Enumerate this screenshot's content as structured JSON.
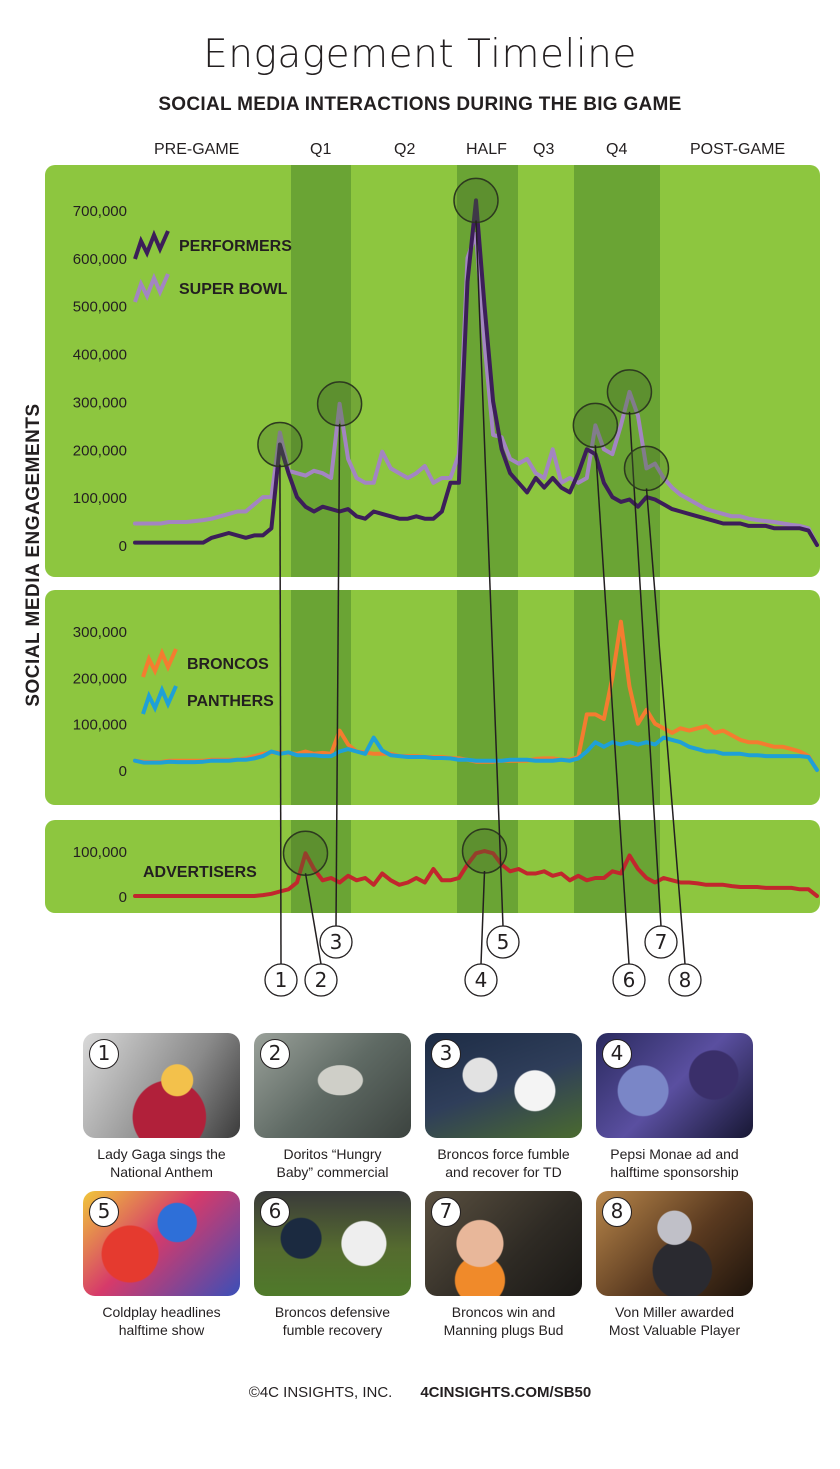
{
  "title": "Engagement Timeline",
  "subtitle": "SOCIAL MEDIA INTERACTIONS DURING THE BIG GAME",
  "y_axis_label": "SOCIAL MEDIA ENGAGEMENTS",
  "phases": [
    "PRE-GAME",
    "Q1",
    "Q2",
    "HALF",
    "Q3",
    "Q4",
    "POST-GAME"
  ],
  "colors": {
    "panel": "#8dc63f",
    "panel_dark": "#6aa434",
    "performers": "#3c1e59",
    "super_bowl": "#a385c2",
    "broncos": "#f47c30",
    "panthers": "#1fa0d6",
    "advertisers": "#c1272d"
  },
  "chart_data": [
    {
      "type": "line",
      "panel": "top",
      "x": [
        0,
        1,
        2,
        3,
        4,
        5,
        6,
        7,
        8,
        9,
        10,
        11,
        12,
        13,
        14,
        15,
        16,
        17,
        18,
        19,
        20,
        21,
        22,
        23,
        24,
        25,
        26,
        27,
        28,
        29,
        30,
        31,
        32,
        33,
        34,
        35,
        36,
        37,
        38,
        39,
        40,
        41,
        42,
        43,
        44,
        45,
        46,
        47,
        48,
        49,
        50,
        51,
        52,
        53,
        54,
        55,
        56,
        57,
        58,
        59,
        60,
        61,
        62,
        63,
        64,
        65,
        66,
        67,
        68,
        69,
        70,
        71,
        72,
        73,
        74,
        75,
        76,
        77,
        78,
        79,
        80
      ],
      "y_ticks": [
        "0",
        "100,000",
        "200,000",
        "300,000",
        "400,000",
        "500,000",
        "600,000",
        "700,000"
      ],
      "ylim": [
        0,
        750000
      ],
      "series": [
        {
          "name": "PERFORMERS",
          "values": [
            5000,
            5000,
            5000,
            5000,
            5000,
            5000,
            5000,
            5000,
            5000,
            15000,
            20000,
            25000,
            20000,
            15000,
            20000,
            20000,
            35000,
            210000,
            150000,
            100000,
            80000,
            70000,
            80000,
            75000,
            70000,
            75000,
            60000,
            55000,
            70000,
            65000,
            60000,
            55000,
            55000,
            60000,
            55000,
            55000,
            70000,
            130000,
            130000,
            550000,
            720000,
            500000,
            300000,
            200000,
            150000,
            130000,
            110000,
            140000,
            120000,
            140000,
            120000,
            110000,
            150000,
            200000,
            190000,
            130000,
            100000,
            90000,
            95000,
            80000,
            100000,
            95000,
            85000,
            75000,
            70000,
            65000,
            60000,
            55000,
            50000,
            45000,
            45000,
            45000,
            40000,
            40000,
            40000,
            35000,
            35000,
            35000,
            35000,
            30000,
            0
          ]
        },
        {
          "name": "SUPER BOWL",
          "values": [
            45000,
            45000,
            45000,
            45000,
            48000,
            48000,
            48000,
            50000,
            52000,
            55000,
            60000,
            65000,
            70000,
            70000,
            85000,
            100000,
            100000,
            235000,
            155000,
            150000,
            145000,
            155000,
            150000,
            140000,
            295000,
            180000,
            140000,
            130000,
            130000,
            195000,
            160000,
            150000,
            140000,
            150000,
            165000,
            130000,
            140000,
            140000,
            190000,
            600000,
            650000,
            420000,
            230000,
            225000,
            180000,
            170000,
            180000,
            150000,
            140000,
            200000,
            130000,
            140000,
            130000,
            140000,
            250000,
            200000,
            190000,
            250000,
            320000,
            270000,
            160000,
            170000,
            140000,
            120000,
            105000,
            95000,
            85000,
            75000,
            70000,
            65000,
            60000,
            60000,
            55000,
            52000,
            50000,
            48000,
            45000,
            42000,
            40000,
            35000,
            0
          ]
        }
      ]
    },
    {
      "type": "line",
      "panel": "middle",
      "y_ticks": [
        "0",
        "100,000",
        "200,000",
        "300,000"
      ],
      "ylim": [
        0,
        330000
      ],
      "series": [
        {
          "name": "BRONCOS",
          "values": [
            20000,
            18000,
            17000,
            17000,
            20000,
            20000,
            20000,
            20000,
            20000,
            22000,
            22000,
            22000,
            22000,
            25000,
            30000,
            35000,
            38000,
            38000,
            36000,
            35000,
            40000,
            35000,
            37000,
            35000,
            85000,
            55000,
            40000,
            38000,
            35000,
            35000,
            35000,
            30000,
            30000,
            30000,
            28000,
            28000,
            28000,
            26000,
            25000,
            22000,
            18000,
            18000,
            18000,
            20000,
            20000,
            20000,
            20000,
            24000,
            25000,
            25000,
            22000,
            22000,
            28000,
            120000,
            120000,
            110000,
            200000,
            320000,
            180000,
            100000,
            130000,
            100000,
            90000,
            80000,
            90000,
            85000,
            90000,
            95000,
            80000,
            85000,
            75000,
            65000,
            60000,
            60000,
            55000,
            50000,
            50000,
            45000,
            40000,
            30000,
            0
          ]
        },
        {
          "name": "PANTHERS",
          "values": [
            20000,
            16000,
            16000,
            16000,
            18000,
            17000,
            17000,
            17000,
            18000,
            20000,
            20000,
            20000,
            22000,
            22000,
            25000,
            30000,
            40000,
            35000,
            38000,
            32000,
            32000,
            32000,
            30000,
            30000,
            40000,
            45000,
            40000,
            35000,
            70000,
            42000,
            32000,
            30000,
            28000,
            28000,
            28000,
            26000,
            26000,
            25000,
            22000,
            22000,
            20000,
            20000,
            20000,
            20000,
            22000,
            22000,
            22000,
            20000,
            20000,
            20000,
            22000,
            20000,
            25000,
            40000,
            60000,
            50000,
            60000,
            55000,
            60000,
            55000,
            60000,
            55000,
            70000,
            65000,
            60000,
            50000,
            45000,
            40000,
            40000,
            35000,
            35000,
            35000,
            32000,
            32000,
            30000,
            30000,
            30000,
            30000,
            30000,
            28000,
            0
          ]
        }
      ]
    },
    {
      "type": "line",
      "panel": "bottom",
      "y_ticks": [
        "0",
        "100,000"
      ],
      "ylim": [
        0,
        115000
      ],
      "series": [
        {
          "name": "ADVERTISERS",
          "values": [
            0,
            0,
            0,
            0,
            0,
            0,
            0,
            0,
            0,
            0,
            0,
            0,
            0,
            0,
            0,
            2000,
            5000,
            10000,
            15000,
            30000,
            95000,
            60000,
            35000,
            40000,
            30000,
            45000,
            35000,
            40000,
            25000,
            50000,
            35000,
            25000,
            30000,
            40000,
            30000,
            60000,
            35000,
            35000,
            40000,
            70000,
            95000,
            100000,
            95000,
            70000,
            55000,
            60000,
            50000,
            50000,
            55000,
            45000,
            50000,
            35000,
            45000,
            35000,
            40000,
            40000,
            55000,
            50000,
            90000,
            60000,
            40000,
            30000,
            40000,
            35000,
            30000,
            30000,
            28000,
            25000,
            25000,
            25000,
            22000,
            20000,
            20000,
            20000,
            18000,
            18000,
            18000,
            18000,
            15000,
            15000,
            0
          ]
        }
      ]
    }
  ],
  "callouts": [
    "1",
    "2",
    "3",
    "4",
    "5",
    "6",
    "7",
    "8"
  ],
  "cards": [
    {
      "num": "1",
      "caption_line1": "Lady Gaga sings the",
      "caption_line2": "National Anthem"
    },
    {
      "num": "2",
      "caption_line1": "Doritos “Hungry",
      "caption_line2": "Baby” commercial"
    },
    {
      "num": "3",
      "caption_line1": "Broncos force fumble",
      "caption_line2": "and recover for TD"
    },
    {
      "num": "4",
      "caption_line1": "Pepsi Monae ad and",
      "caption_line2": "halftime sponsorship"
    },
    {
      "num": "5",
      "caption_line1": "Coldplay headlines",
      "caption_line2": "halftime show"
    },
    {
      "num": "6",
      "caption_line1": "Broncos defensive",
      "caption_line2": "fumble recovery"
    },
    {
      "num": "7",
      "caption_line1": "Broncos win and",
      "caption_line2": "Manning plugs Bud"
    },
    {
      "num": "8",
      "caption_line1": "Von Miller awarded",
      "caption_line2": "Most Valuable Player"
    }
  ],
  "footer": {
    "copyright": "©4C INSIGHTS, INC.",
    "url": "4CINSIGHTS.COM/SB50"
  }
}
